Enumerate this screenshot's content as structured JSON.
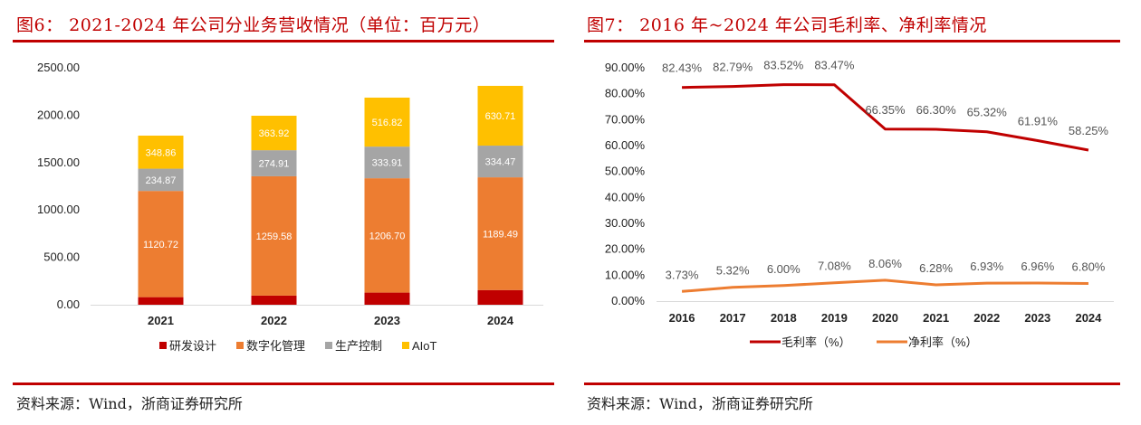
{
  "left": {
    "title": "图6： 2021-2024 年公司分业务营收情况（单位：百万元）",
    "source": "资料来源：Wind，浙商证券研究所"
  },
  "right": {
    "title": "图7： 2016 年~2024 年公司毛利率、净利率情况",
    "source": "资料来源：Wind，浙商证券研究所"
  },
  "colors": {
    "accent": "#c00000",
    "research": "#c00000",
    "digital": "#ed7d31",
    "production": "#a5a5a5",
    "aiot": "#ffc000",
    "gross": "#c00000",
    "net": "#ed7d31",
    "axis": "#d9d9d9"
  },
  "chart_data": [
    {
      "type": "bar",
      "stacked": true,
      "title": "2021-2024 年公司分业务营收情况（单位：百万元）",
      "xlabel": "",
      "ylabel": "",
      "categories": [
        "2021",
        "2022",
        "2023",
        "2024"
      ],
      "ylim": [
        0,
        2500
      ],
      "yticks": [
        "0.00",
        "500.00",
        "1000.00",
        "1500.00",
        "2000.00",
        "2500.00"
      ],
      "ytick_values": [
        0,
        500,
        1000,
        1500,
        2000,
        2500
      ],
      "grid": false,
      "legend_position": "bottom",
      "series": [
        {
          "name": "研发设计",
          "color_key": "research",
          "values": [
            80,
            96,
            128,
            155
          ],
          "labels": [
            "",
            "",
            "",
            ""
          ]
        },
        {
          "name": "数字化管理",
          "color_key": "digital",
          "values": [
            1120.72,
            1259.58,
            1206.7,
            1189.49
          ],
          "labels": [
            "1120.72",
            "1259.58",
            "1206.70",
            "1189.49"
          ]
        },
        {
          "name": "生产控制",
          "color_key": "production",
          "values": [
            234.87,
            274.91,
            333.91,
            334.47
          ],
          "labels": [
            "234.87",
            "274.91",
            "333.91",
            "334.47"
          ]
        },
        {
          "name": "AIoT",
          "color_key": "aiot",
          "values": [
            348.86,
            363.92,
            516.82,
            630.71
          ],
          "labels": [
            "348.86",
            "363.92",
            "516.82",
            "630.71"
          ]
        }
      ]
    },
    {
      "type": "line",
      "title": "2016 年~2024 年公司毛利率、净利率情况",
      "xlabel": "",
      "ylabel": "",
      "x": [
        "2016",
        "2017",
        "2018",
        "2019",
        "2020",
        "2021",
        "2022",
        "2023",
        "2024"
      ],
      "ylim": [
        0,
        90
      ],
      "yticks": [
        "0.00%",
        "10.00%",
        "20.00%",
        "30.00%",
        "40.00%",
        "50.00%",
        "60.00%",
        "70.00%",
        "80.00%",
        "90.00%"
      ],
      "ytick_values": [
        0,
        10,
        20,
        30,
        40,
        50,
        60,
        70,
        80,
        90
      ],
      "grid": false,
      "legend_position": "bottom",
      "series": [
        {
          "name": "毛利率（%）",
          "color_key": "gross",
          "values": [
            82.43,
            82.79,
            83.52,
            83.47,
            66.35,
            66.3,
            65.32,
            61.91,
            58.25
          ],
          "labels": [
            "82.43%",
            "82.79%",
            "83.52%",
            "83.47%",
            "66.35%",
            "66.30%",
            "65.32%",
            "61.91%",
            "58.25%"
          ]
        },
        {
          "name": "净利率（%）",
          "color_key": "net",
          "values": [
            3.73,
            5.32,
            6.0,
            7.08,
            8.06,
            6.28,
            6.93,
            6.96,
            6.8
          ],
          "labels": [
            "3.73%",
            "5.32%",
            "6.00%",
            "7.08%",
            "8.06%",
            "6.28%",
            "6.93%",
            "6.96%",
            "6.80%"
          ]
        }
      ]
    }
  ]
}
